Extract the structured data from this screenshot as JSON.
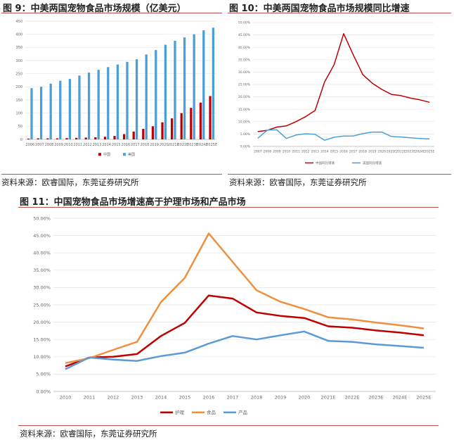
{
  "figures": [
    {
      "title": "图 9：中美两国宠物食品市场规模（亿美元）",
      "source": "资料来源：欧睿国际，东莞证券研究所"
    },
    {
      "title": "图 10：中美两国宠物食品市场规模同比增速",
      "source": "资料来源：欧睿国际，东莞证券研究所"
    },
    {
      "title": "图 11：中国宠物食品市场增速高于护理市场和产品市场",
      "source": "资料来源：欧睿国际，东莞证券研究所"
    }
  ],
  "chart_data": [
    {
      "type": "bar",
      "title": "中美两国宠物食品市场规模（亿美元）",
      "categories": [
        "2006",
        "2007",
        "2008",
        "2009",
        "2010",
        "2011",
        "2012",
        "2013",
        "2014",
        "2015",
        "2016",
        "2017",
        "2018",
        "2019",
        "2020",
        "2021E",
        "2022E",
        "2023E",
        "2024E",
        "2025E"
      ],
      "ylim": [
        0,
        450
      ],
      "yticks": [
        "0",
        "50",
        "100",
        "150",
        "200",
        "250",
        "300",
        "350",
        "400",
        "450"
      ],
      "series": [
        {
          "name": "中国",
          "color": "#c00000",
          "values": [
            3,
            4,
            4,
            4,
            5,
            6,
            7,
            8,
            10,
            13,
            20,
            30,
            40,
            50,
            65,
            80,
            100,
            120,
            140,
            165
          ]
        },
        {
          "name": "美国",
          "color": "#4a9fd8",
          "values": [
            195,
            200,
            212,
            223,
            230,
            243,
            254,
            265,
            275,
            285,
            295,
            305,
            323,
            340,
            360,
            375,
            388,
            400,
            415,
            425
          ]
        }
      ],
      "legend": [
        "中国",
        "美国"
      ]
    },
    {
      "type": "line",
      "title": "中美两国宠物食品市场规模同比增速",
      "categories": [
        "2007",
        "2008",
        "2009",
        "2010",
        "2011",
        "2012",
        "2013",
        "2014",
        "2015",
        "2016",
        "2017",
        "2018",
        "2019",
        "2020",
        "2021E",
        "2022E",
        "2023E",
        "2024E",
        "2025E"
      ],
      "ylim": [
        0,
        50
      ],
      "yticks": [
        "0.00%",
        "5.00%",
        "10.00%",
        "15.00%",
        "20.00%",
        "25.00%",
        "30.00%",
        "35.00%",
        "40.00%",
        "45.00%",
        "50.00%"
      ],
      "series": [
        {
          "name": "中国同比增速",
          "color": "#c00000",
          "values": [
            6,
            6.5,
            7.8,
            8.3,
            10,
            12,
            14.5,
            26,
            33,
            45.5,
            37,
            29,
            25.5,
            23,
            21,
            20.5,
            19.5,
            18.8,
            17.8
          ]
        },
        {
          "name": "美国同比增速",
          "color": "#4a9fd8",
          "values": [
            3.3,
            6.6,
            6.7,
            3.2,
            4.6,
            5.1,
            4.9,
            2.5,
            3.7,
            4.2,
            4.2,
            5.2,
            5.8,
            5.8,
            4,
            3.8,
            3.5,
            3.2,
            3
          ]
        }
      ],
      "legend": [
        "中国同比增速",
        "美国同比增速"
      ]
    },
    {
      "type": "line",
      "title": "中国宠物食品市场增速高于护理市场和产品市场",
      "categories": [
        "2010",
        "2011",
        "2012",
        "2013",
        "2014",
        "2015",
        "2016",
        "2017",
        "2018",
        "2019",
        "2020",
        "2021E",
        "2022E",
        "2023E",
        "2024E",
        "2025E"
      ],
      "ylim": [
        0,
        50
      ],
      "yticks": [
        "0.00%",
        "5.00%",
        "10.00%",
        "15.00%",
        "20.00%",
        "25.00%",
        "30.00%",
        "35.00%",
        "40.00%",
        "45.00%",
        "50.00%"
      ],
      "series": [
        {
          "name": "护理",
          "color": "#c00000",
          "values": [
            7.2,
            9.8,
            10,
            10.8,
            16,
            19.8,
            27.7,
            26.8,
            22.8,
            21.8,
            21.2,
            18.8,
            18.4,
            17.6,
            17,
            16.2
          ]
        },
        {
          "name": "食品",
          "color": "#ee9040",
          "values": [
            8.2,
            9.6,
            12,
            14.3,
            25.8,
            32.8,
            45.6,
            37.4,
            29.2,
            25.9,
            23.8,
            21.4,
            20.8,
            19.9,
            19.1,
            18.2
          ]
        },
        {
          "name": "产品",
          "color": "#5b9bd5",
          "values": [
            6.4,
            9.8,
            9.2,
            8.8,
            10.2,
            11.2,
            13.8,
            16,
            15,
            16.2,
            17.3,
            14.6,
            14.3,
            13.6,
            13.1,
            12.6
          ]
        }
      ],
      "legend": [
        "护理",
        "食品",
        "产品"
      ]
    }
  ]
}
